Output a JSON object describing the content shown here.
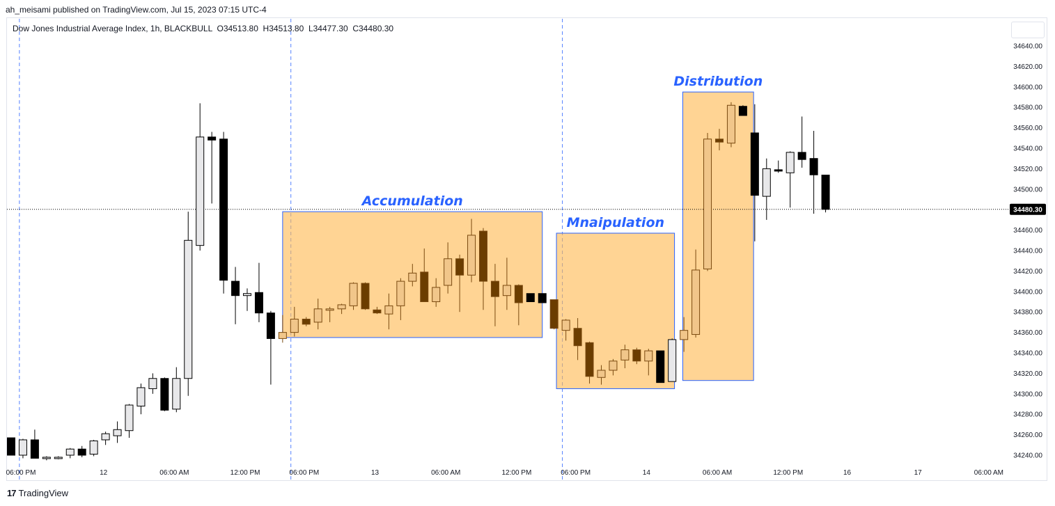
{
  "header": {
    "published": "ah_meisami published on TradingView.com, Jul 15, 2023 07:15 UTC-4",
    "symbol_line": "Dow Jones Industrial Average Index, 1h, BLACKBULL  O34513.80  H34513.80  L34477.30  C34480.30"
  },
  "footer": {
    "brand": "TradingView",
    "logo_icon": "tradingview-logo-icon"
  },
  "colors": {
    "bull_fill": "#e8e8ea",
    "bear_fill": "#000000",
    "outline": "#000000",
    "box_fill": "#ffb74d",
    "box_border": "#2962ff",
    "box_bull_fill": "#f1c68a",
    "box_bear_fill": "#6b3d00",
    "box_outline": "#7a4a10",
    "label_color": "#2962ff",
    "grid_dashed": "#2962ff",
    "last_price_bg": "#000000"
  },
  "chart_data": {
    "type": "candlestick",
    "title": "Dow Jones Industrial Average Index, 1h, BLACKBULL",
    "ohlc_header": {
      "O": 34513.8,
      "H": 34513.8,
      "L": 34477.3,
      "C": 34480.3
    },
    "y_ticks": [
      34240,
      34260,
      34280,
      34300,
      34320,
      34340,
      34360,
      34380,
      34400,
      34420,
      34440,
      34460,
      34480,
      34500,
      34520,
      34540,
      34560,
      34580,
      34600,
      34620,
      34640
    ],
    "y_tick_labels": [
      "34240.00",
      "34260.00",
      "34280.00",
      "34300.00",
      "34320.00",
      "34340.00",
      "34360.00",
      "34380.00",
      "34400.00",
      "34420.00",
      "34440.00",
      "34460.00",
      "34480.00",
      "34500.00",
      "34520.00",
      "34540.00",
      "34560.00",
      "34580.00",
      "34600.00",
      "34620.00",
      "34640.00"
    ],
    "ylim": [
      34230,
      34658
    ],
    "last_price": 34480.3,
    "last_price_label": "34480.30",
    "x_ticks": [
      {
        "bar": 0,
        "label": "06:00 PM"
      },
      {
        "bar": 7,
        "label": "12"
      },
      {
        "bar": 13,
        "label": "06:00 AM"
      },
      {
        "bar": 19,
        "label": "12:00 PM"
      },
      {
        "bar": 24,
        "label": "06:00 PM"
      },
      {
        "bar": 30,
        "label": "13"
      },
      {
        "bar": 36,
        "label": "06:00 AM"
      },
      {
        "bar": 42,
        "label": "12:00 PM"
      },
      {
        "bar": 47,
        "label": "06:00 PM"
      },
      {
        "bar": 53,
        "label": "14"
      },
      {
        "bar": 59,
        "label": "06:00 AM"
      },
      {
        "bar": 65,
        "label": "12:00 PM"
      },
      {
        "bar": 70,
        "label": "16"
      },
      {
        "bar": 76,
        "label": "17"
      },
      {
        "bar": 82,
        "label": "06:00 AM"
      }
    ],
    "session_lines_bars": [
      0.7,
      23.7,
      46.7
    ],
    "candles": [
      {
        "o": 34257,
        "h": 34257,
        "l": 34240,
        "c": 34240,
        "zone": "none"
      },
      {
        "o": 34240,
        "h": 34256,
        "l": 34237,
        "c": 34255,
        "zone": "none"
      },
      {
        "o": 34255,
        "h": 34265,
        "l": 34237,
        "c": 34237,
        "zone": "none"
      },
      {
        "o": 34237,
        "h": 34239,
        "l": 34235,
        "c": 34238,
        "zone": "none"
      },
      {
        "o": 34238,
        "h": 34239,
        "l": 34236,
        "c": 34238,
        "zone": "none"
      },
      {
        "o": 34240,
        "h": 34247,
        "l": 34237,
        "c": 34246,
        "zone": "none"
      },
      {
        "o": 34246,
        "h": 34249,
        "l": 34238,
        "c": 34240,
        "zone": "none"
      },
      {
        "o": 34241,
        "h": 34255,
        "l": 34239,
        "c": 34254,
        "zone": "none"
      },
      {
        "o": 34255,
        "h": 34263,
        "l": 34250,
        "c": 34261,
        "zone": "none"
      },
      {
        "o": 34259,
        "h": 34273,
        "l": 34252,
        "c": 34265,
        "zone": "none"
      },
      {
        "o": 34264,
        "h": 34290,
        "l": 34257,
        "c": 34289,
        "zone": "none"
      },
      {
        "o": 34288,
        "h": 34310,
        "l": 34280,
        "c": 34306,
        "zone": "none"
      },
      {
        "o": 34305,
        "h": 34320,
        "l": 34300,
        "c": 34315,
        "zone": "none"
      },
      {
        "o": 34315,
        "h": 34316,
        "l": 34283,
        "c": 34284,
        "zone": "none"
      },
      {
        "o": 34285,
        "h": 34326,
        "l": 34282,
        "c": 34315,
        "zone": "none"
      },
      {
        "o": 34315,
        "h": 34478,
        "l": 34298,
        "c": 34450,
        "zone": "none"
      },
      {
        "o": 34445,
        "h": 34584,
        "l": 34440,
        "c": 34551,
        "zone": "none"
      },
      {
        "o": 34551,
        "h": 34556,
        "l": 34486,
        "c": 34548,
        "zone": "none"
      },
      {
        "o": 34549,
        "h": 34556,
        "l": 34398,
        "c": 34411,
        "zone": "none"
      },
      {
        "o": 34410,
        "h": 34424,
        "l": 34368,
        "c": 34396,
        "zone": "none"
      },
      {
        "o": 34396,
        "h": 34403,
        "l": 34381,
        "c": 34398,
        "zone": "none"
      },
      {
        "o": 34399,
        "h": 34428,
        "l": 34370,
        "c": 34379,
        "zone": "none"
      },
      {
        "o": 34379,
        "h": 34381,
        "l": 34309,
        "c": 34354,
        "zone": "none"
      },
      {
        "o": 34354,
        "h": 34377,
        "l": 34350,
        "c": 34360,
        "zone": "acc"
      },
      {
        "o": 34360,
        "h": 34385,
        "l": 34356,
        "c": 34373,
        "zone": "acc"
      },
      {
        "o": 34373,
        "h": 34375,
        "l": 34366,
        "c": 34368,
        "zone": "acc"
      },
      {
        "o": 34370,
        "h": 34393,
        "l": 34363,
        "c": 34383,
        "zone": "acc"
      },
      {
        "o": 34382,
        "h": 34385,
        "l": 34370,
        "c": 34383,
        "zone": "acc"
      },
      {
        "o": 34383,
        "h": 34388,
        "l": 34378,
        "c": 34387,
        "zone": "acc"
      },
      {
        "o": 34386,
        "h": 34409,
        "l": 34382,
        "c": 34408,
        "zone": "acc"
      },
      {
        "o": 34408,
        "h": 34409,
        "l": 34382,
        "c": 34383,
        "zone": "acc"
      },
      {
        "o": 34382,
        "h": 34385,
        "l": 34378,
        "c": 34379,
        "zone": "acc"
      },
      {
        "o": 34378,
        "h": 34398,
        "l": 34363,
        "c": 34386,
        "zone": "acc"
      },
      {
        "o": 34386,
        "h": 34413,
        "l": 34372,
        "c": 34410,
        "zone": "acc"
      },
      {
        "o": 34410,
        "h": 34427,
        "l": 34405,
        "c": 34418,
        "zone": "acc"
      },
      {
        "o": 34419,
        "h": 34442,
        "l": 34390,
        "c": 34390,
        "zone": "acc"
      },
      {
        "o": 34390,
        "h": 34413,
        "l": 34385,
        "c": 34404,
        "zone": "acc"
      },
      {
        "o": 34406,
        "h": 34448,
        "l": 34398,
        "c": 34432,
        "zone": "acc"
      },
      {
        "o": 34432,
        "h": 34436,
        "l": 34380,
        "c": 34416,
        "zone": "acc"
      },
      {
        "o": 34416,
        "h": 34471,
        "l": 34409,
        "c": 34455,
        "zone": "acc"
      },
      {
        "o": 34459,
        "h": 34462,
        "l": 34382,
        "c": 34410,
        "zone": "acc"
      },
      {
        "o": 34410,
        "h": 34427,
        "l": 34366,
        "c": 34395,
        "zone": "acc"
      },
      {
        "o": 34396,
        "h": 34433,
        "l": 34382,
        "c": 34406,
        "zone": "acc"
      },
      {
        "o": 34406,
        "h": 34407,
        "l": 34367,
        "c": 34389,
        "zone": "acc"
      },
      {
        "o": 34398,
        "h": 34398,
        "l": 34390,
        "c": 34390,
        "zone": "none"
      },
      {
        "o": 34398,
        "h": 34398,
        "l": 34389,
        "c": 34389,
        "zone": "none"
      },
      {
        "o": 34392,
        "h": 34392,
        "l": 34363,
        "c": 34364,
        "zone": "man"
      },
      {
        "o": 34362,
        "h": 34373,
        "l": 34352,
        "c": 34372,
        "zone": "man"
      },
      {
        "o": 34364,
        "h": 34374,
        "l": 34333,
        "c": 34347,
        "zone": "man"
      },
      {
        "o": 34350,
        "h": 34351,
        "l": 34310,
        "c": 34317,
        "zone": "man"
      },
      {
        "o": 34316,
        "h": 34328,
        "l": 34309,
        "c": 34323,
        "zone": "man"
      },
      {
        "o": 34323,
        "h": 34334,
        "l": 34318,
        "c": 34332,
        "zone": "man"
      },
      {
        "o": 34333,
        "h": 34348,
        "l": 34325,
        "c": 34343,
        "zone": "man"
      },
      {
        "o": 34343,
        "h": 34345,
        "l": 34329,
        "c": 34332,
        "zone": "man"
      },
      {
        "o": 34332,
        "h": 34344,
        "l": 34318,
        "c": 34342,
        "zone": "man"
      },
      {
        "o": 34342,
        "h": 34342,
        "l": 34311,
        "c": 34311,
        "zone": "none"
      },
      {
        "o": 34312,
        "h": 34354,
        "l": 34312,
        "c": 34353,
        "zone": "none"
      },
      {
        "o": 34353,
        "h": 34375,
        "l": 34341,
        "c": 34362,
        "zone": "dist"
      },
      {
        "o": 34358,
        "h": 34441,
        "l": 34355,
        "c": 34421,
        "zone": "dist"
      },
      {
        "o": 34422,
        "h": 34555,
        "l": 34420,
        "c": 34549,
        "zone": "dist"
      },
      {
        "o": 34549,
        "h": 34559,
        "l": 34538,
        "c": 34546,
        "zone": "dist"
      },
      {
        "o": 34545,
        "h": 34585,
        "l": 34541,
        "c": 34582,
        "zone": "dist"
      },
      {
        "o": 34581,
        "h": 34582,
        "l": 34572,
        "c": 34572,
        "zone": "none"
      },
      {
        "o": 34555,
        "h": 34583,
        "l": 34449,
        "c": 34494,
        "zone": "none"
      },
      {
        "o": 34493,
        "h": 34530,
        "l": 34470,
        "c": 34520,
        "zone": "none"
      },
      {
        "o": 34519,
        "h": 34528,
        "l": 34516,
        "c": 34518,
        "zone": "none"
      },
      {
        "o": 34516,
        "h": 34537,
        "l": 34482,
        "c": 34536,
        "zone": "none"
      },
      {
        "o": 34536,
        "h": 34571,
        "l": 34521,
        "c": 34529,
        "zone": "none"
      },
      {
        "o": 34530,
        "h": 34557,
        "l": 34476,
        "c": 34514,
        "zone": "none"
      },
      {
        "o": 34513.8,
        "h": 34513.8,
        "l": 34477.3,
        "c": 34480.3,
        "zone": "none"
      }
    ],
    "zones": [
      {
        "label": "Accumulation",
        "x0": 23.0,
        "x1": 45.0,
        "y0": 34355,
        "y1": 34478
      },
      {
        "label": "Mnaipulation",
        "x0": 46.2,
        "x1": 56.2,
        "y0": 34305,
        "y1": 34457
      },
      {
        "label": "Distribution",
        "x0": 56.9,
        "x1": 62.9,
        "y0": 34313,
        "y1": 34595
      }
    ]
  }
}
